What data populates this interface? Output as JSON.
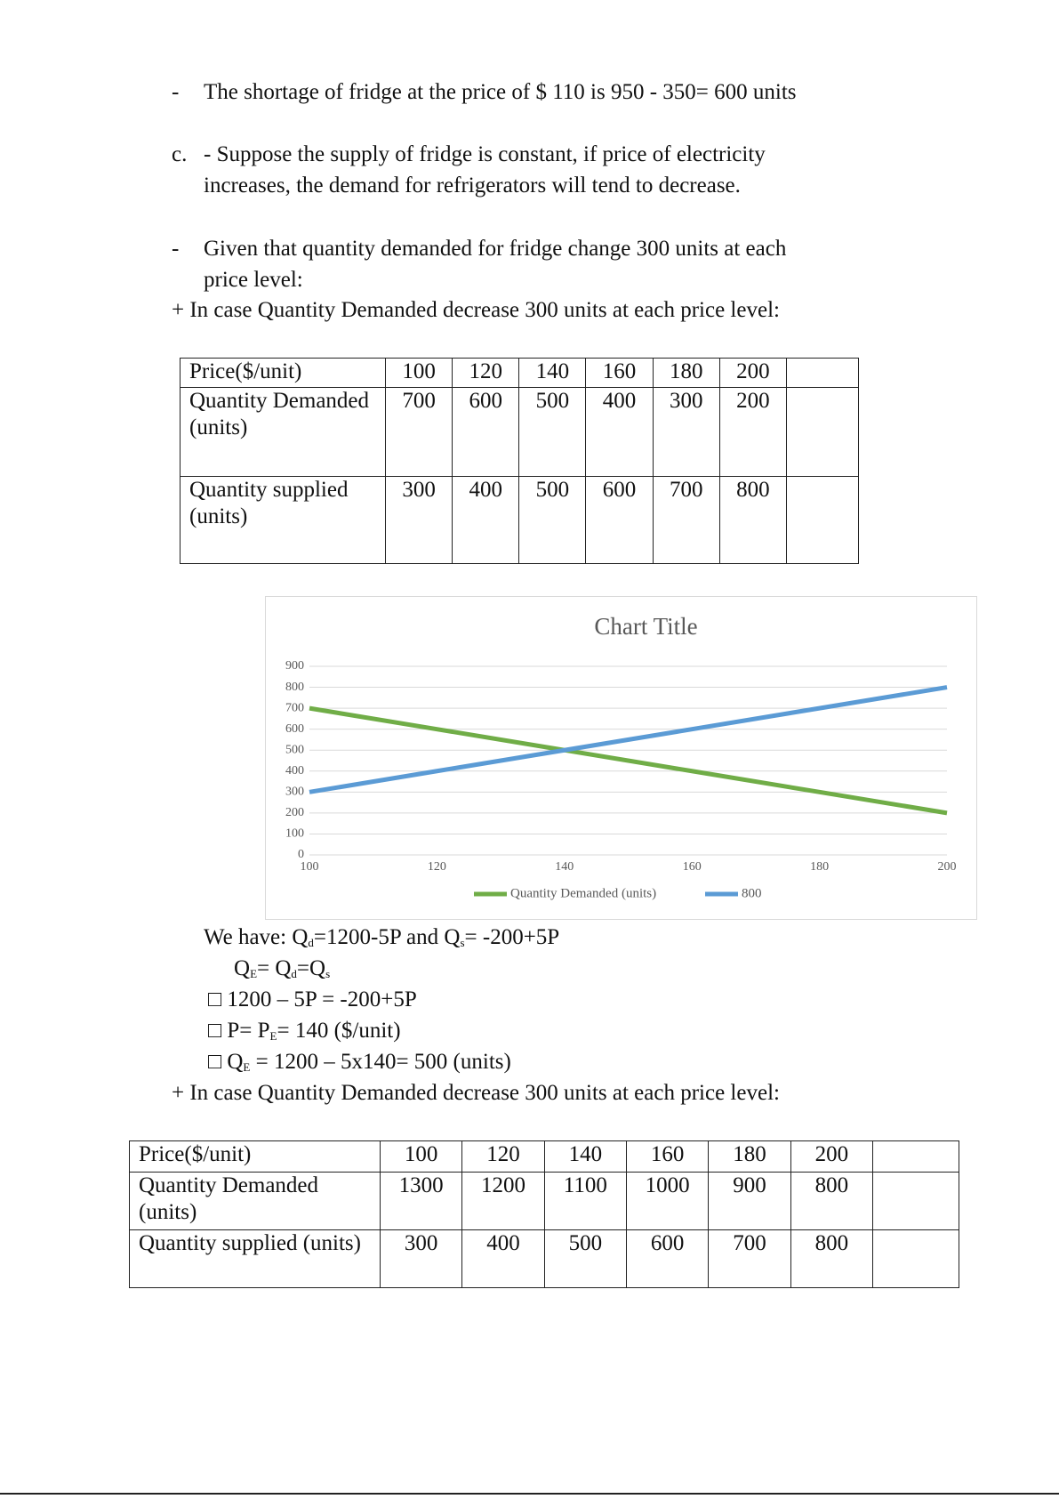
{
  "paragraphs": [
    {
      "marker": "-",
      "text": "The shortage of fridge at the price of $ 110 is 950 - 350= 600 units"
    },
    {
      "marker": "c.",
      "text": "- Suppose the supply of fridge is constant, if price of electricity increases, the demand for refrigerators will tend to decrease."
    },
    {
      "marker": "-",
      "text": "Given that quantity demanded for fridge change 300 units at each price level:"
    },
    {
      "marker": "+",
      "text": "In case Quantity Demanded decrease 300 units at each price level:"
    }
  ],
  "table1": {
    "rows": [
      [
        "Price($/unit)",
        "100",
        "120",
        "140",
        "160",
        "180",
        "200"
      ],
      [
        "Quantity Demanded (units)",
        "700",
        "600",
        "500",
        "400",
        "300",
        "200"
      ],
      [
        "Quantity supplied (units)",
        "300",
        "400",
        "500",
        "600",
        "700",
        "800"
      ]
    ]
  },
  "chart_data": {
    "type": "line",
    "title": "Chart Title",
    "x": [
      100,
      120,
      140,
      160,
      180,
      200
    ],
    "xlim": [
      100,
      200
    ],
    "series": [
      {
        "name": "Quantity Demanded (units)",
        "color": "#70ad47",
        "values": [
          700,
          600,
          500,
          400,
          300,
          200
        ]
      },
      {
        "name": "800",
        "color": "#5b9bd5",
        "values": [
          300,
          400,
          500,
          600,
          700,
          800
        ]
      }
    ],
    "ylim": [
      0,
      900
    ],
    "yticks": [
      0,
      100,
      200,
      300,
      400,
      500,
      600,
      700,
      800,
      900
    ],
    "grid": true,
    "legend": "bottom"
  },
  "equations": [
    {
      "parts": [
        "We have: Q",
        "d",
        "=1200-5P and Q",
        "s",
        "= -200+5P"
      ]
    },
    {
      "parts": [
        "Q",
        "E",
        "= Q",
        "d",
        "=Q",
        "s"
      ]
    },
    {
      "parts": [
        "□ 1200 – 5P = -200+5P"
      ]
    },
    {
      "parts": [
        "□ P= P",
        "E",
        "= 140 ($/unit)"
      ]
    },
    {
      "parts": [
        "□ Q",
        "E",
        " = 1200 – 5x140= 500 (units)"
      ]
    }
  ],
  "note2": {
    "marker": "+",
    "text": "In case Quantity Demanded decrease 300 units at each price level:"
  },
  "table2": {
    "rows": [
      [
        "Price($/unit)",
        "100",
        "120",
        "140",
        "160",
        "180",
        "200"
      ],
      [
        "Quantity Demanded (units)",
        "1300",
        "1200",
        "1100",
        "1000",
        "900",
        "800"
      ],
      [
        "Quantity supplied (units)",
        "300",
        "400",
        "500",
        "600",
        "700",
        "800"
      ]
    ]
  }
}
